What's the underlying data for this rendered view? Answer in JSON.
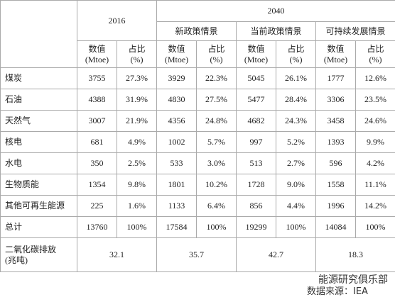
{
  "header": {
    "year_2016": "2016",
    "year_2040": "2040",
    "scenarios": [
      "新政策情景",
      "当前政策情景",
      "可持续发展情景"
    ],
    "columns": [
      {
        "label": "数值",
        "unit": "(Mtoe)"
      },
      {
        "label": "占比",
        "unit": "(%)"
      },
      {
        "label": "数值",
        "unit": "(Mtoe)"
      },
      {
        "label": "占比",
        "unit": "(%)"
      },
      {
        "label": "数值",
        "unit": "(Mtoe)"
      },
      {
        "label": "占比",
        "unit": "(%)"
      },
      {
        "label": "数值",
        "unit": "(Mtoe)"
      },
      {
        "label": "占比",
        "unit": "(%)"
      }
    ]
  },
  "rows": [
    {
      "label": "煤炭",
      "cells": [
        "3755",
        "27.3%",
        "3929",
        "22.3%",
        "5045",
        "26.1%",
        "1777",
        "12.6%"
      ]
    },
    {
      "label": "石油",
      "cells": [
        "4388",
        "31.9%",
        "4830",
        "27.5%",
        "5477",
        "28.4%",
        "3306",
        "23.5%"
      ]
    },
    {
      "label": "天然气",
      "cells": [
        "3007",
        "21.9%",
        "4356",
        "24.8%",
        "4682",
        "24.3%",
        "3458",
        "24.6%"
      ]
    },
    {
      "label": "核电",
      "cells": [
        "681",
        "4.9%",
        "1002",
        "5.7%",
        "997",
        "5.2%",
        "1393",
        "9.9%"
      ]
    },
    {
      "label": "水电",
      "cells": [
        "350",
        "2.5%",
        "533",
        "3.0%",
        "513",
        "2.7%",
        "596",
        "4.2%"
      ]
    },
    {
      "label": "生物质能",
      "cells": [
        "1354",
        "9.8%",
        "1801",
        "10.2%",
        "1728",
        "9.0%",
        "1558",
        "11.1%"
      ]
    },
    {
      "label": "其他可再生能源",
      "cells": [
        "225",
        "1.6%",
        "1133",
        "6.4%",
        "856",
        "4.4%",
        "1996",
        "14.2%"
      ]
    },
    {
      "label": "总计",
      "cells": [
        "13760",
        "100%",
        "17584",
        "100%",
        "19299",
        "100%",
        "14084",
        "100%"
      ]
    }
  ],
  "co2": {
    "label": "二氧化碳排放",
    "unit": "(兆吨)",
    "values": [
      "32.1",
      "35.7",
      "42.7",
      "18.3"
    ]
  },
  "watermark": "能源研究俱乐部",
  "source": "数据来源：IEA"
}
